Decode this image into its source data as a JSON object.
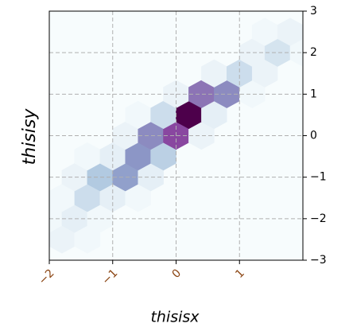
{
  "chart_data": {
    "type": "hexbin",
    "x_label": "thisisx",
    "y_label": "thisisy",
    "x": [
      -1.8,
      -1.4,
      -2.0,
      -1.6,
      -1.2,
      -1.8,
      -1.4,
      -1.0,
      -0.6,
      -1.6,
      -1.2,
      -0.8,
      -0.4,
      -1.4,
      -1.0,
      -0.6,
      -0.2,
      -0.8,
      -0.4,
      0.0,
      0.4,
      -0.6,
      -0.2,
      0.2,
      0.6,
      0.0,
      0.4,
      0.8,
      1.2,
      0.6,
      1.0,
      1.4,
      1.2,
      1.6,
      2.0,
      1.4,
      1.8
    ],
    "y": [
      -2.5,
      -2.5,
      -2.0,
      -2.0,
      -2.0,
      -1.5,
      -1.5,
      -1.5,
      -1.5,
      -1.0,
      -1.0,
      -1.0,
      -1.0,
      -0.5,
      -0.5,
      -0.5,
      -0.5,
      0.0,
      0.0,
      0.0,
      0.0,
      0.5,
      0.5,
      0.5,
      0.5,
      1.0,
      1.0,
      1.0,
      1.0,
      1.5,
      1.5,
      1.5,
      2.0,
      2.0,
      2.0,
      2.5,
      2.5
    ],
    "values": [
      2,
      1,
      1,
      3,
      1,
      1,
      6,
      3,
      1,
      2,
      9,
      14,
      3,
      1,
      3,
      15,
      8,
      2,
      16,
      22,
      2,
      1,
      6,
      30,
      3,
      2,
      18,
      16,
      1,
      2,
      6,
      2,
      2,
      5,
      1,
      1,
      2
    ],
    "xlim": [
      -2,
      2
    ],
    "ylim": [
      -3,
      3
    ],
    "xticks": [
      {
        "value": -2,
        "label": "−2"
      },
      {
        "value": -1,
        "label": "−1"
      },
      0,
      1
    ],
    "yticks": [
      {
        "value": -3,
        "label": "−3"
      },
      {
        "value": -2,
        "label": "−2"
      },
      {
        "value": -1,
        "label": "−1"
      },
      0,
      1,
      2,
      3
    ],
    "x_tick_color": "#8b4513",
    "grid": true
  }
}
